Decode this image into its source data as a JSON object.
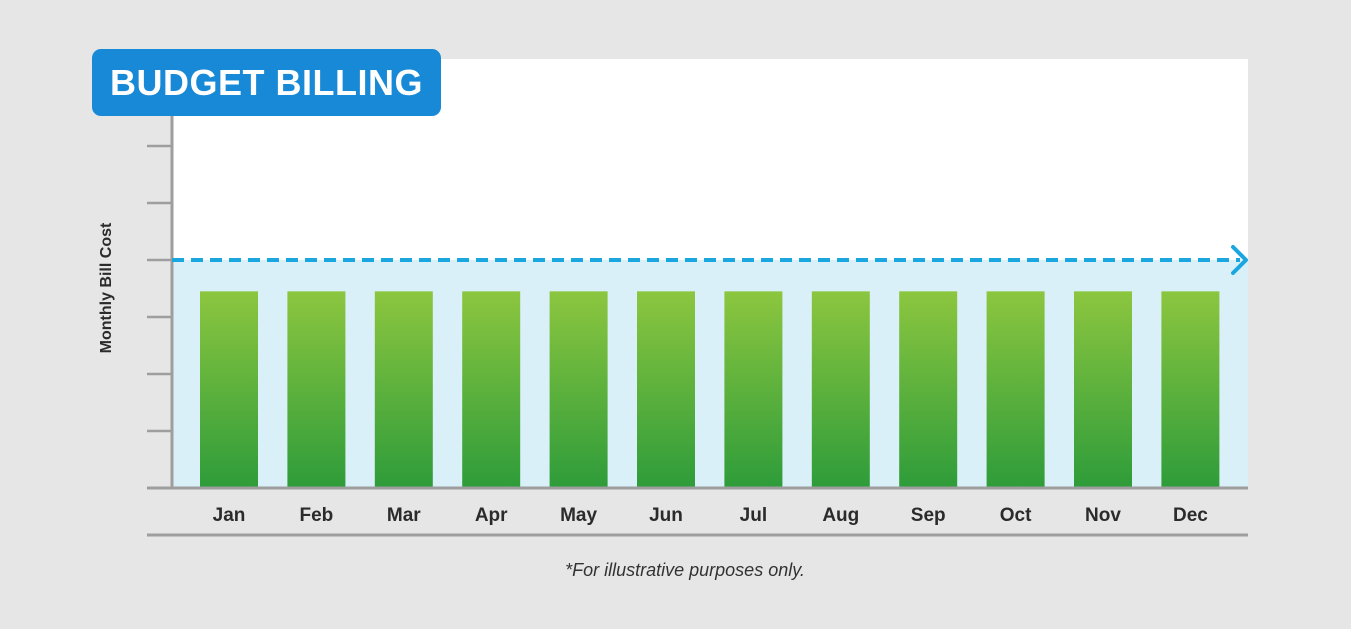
{
  "title": "BUDGET BILLING",
  "footnote": "*For illustrative purposes only.",
  "colors": {
    "background": "#e6e6e6",
    "plot_background": "#ffffff",
    "budget_band": "#daf0f9",
    "title_badge": "#1789d6",
    "budget_line": "#1aa6df",
    "bar_top": "#8cc63f",
    "bar_bottom": "#2e9c3a",
    "axis": "#9e9e9e",
    "tick_text": "#2b2b2b"
  },
  "chart_data": {
    "type": "bar",
    "title": "BUDGET BILLING",
    "xlabel": "",
    "ylabel": "Monthly Bill Cost",
    "categories": [
      "Jan",
      "Feb",
      "Mar",
      "Apr",
      "May",
      "Jun",
      "Jul",
      "Aug",
      "Sep",
      "Oct",
      "Nov",
      "Dec"
    ],
    "series": [
      {
        "name": "Monthly bill",
        "values": [
          3.45,
          3.45,
          3.45,
          3.45,
          3.45,
          3.45,
          3.45,
          3.45,
          3.45,
          3.45,
          3.45,
          3.45
        ]
      }
    ],
    "reference_line": {
      "name": "Budget level",
      "value": 4.0,
      "style": "dashed-arrow"
    },
    "ylim": [
      0,
      7
    ],
    "y_ticks": [
      1,
      2,
      3,
      4,
      5,
      6
    ],
    "y_tick_labels_shown": false,
    "grid": false,
    "legend": "none"
  }
}
